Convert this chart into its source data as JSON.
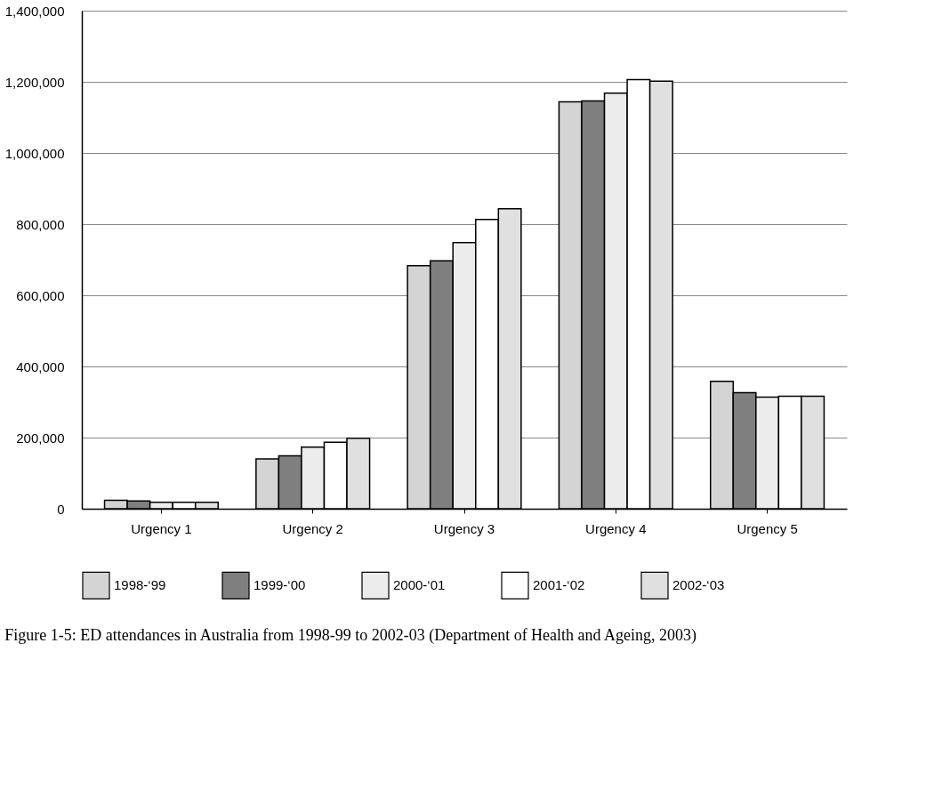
{
  "chart_data": {
    "type": "bar",
    "categories": [
      "Urgency 1",
      "Urgency 2",
      "Urgency 3",
      "Urgency 4",
      "Urgency 5"
    ],
    "series": [
      {
        "name": "1998-‘99",
        "color": "#d4d4d4",
        "values": [
          24000,
          140000,
          683000,
          1144000,
          358000
        ]
      },
      {
        "name": "1999-‘00",
        "color": "#7f7f7f",
        "values": [
          22000,
          149000,
          697000,
          1146000,
          326000
        ]
      },
      {
        "name": "2000-‘01",
        "color": "#ececec",
        "values": [
          18000,
          173000,
          748000,
          1168000,
          314000
        ]
      },
      {
        "name": "2001-‘02",
        "color": "#ffffff",
        "values": [
          18000,
          187000,
          813000,
          1206000,
          316000
        ]
      },
      {
        "name": "2002-‘03",
        "color": "#e0e0e0",
        "values": [
          18000,
          198000,
          843000,
          1202000,
          316000
        ]
      }
    ],
    "ylim": [
      0,
      1400000
    ],
    "yticks": [
      0,
      {
        "value": 200000,
        "label": "200,000"
      },
      {
        "value": 400000,
        "label": "400,000"
      },
      {
        "value": 600000,
        "label": "600,000"
      },
      {
        "value": 800000,
        "label": "800,000"
      },
      {
        "value": 1000000,
        "label": "1,000,000"
      },
      {
        "value": 1200000,
        "label": "1,200,000"
      },
      {
        "value": 1400000,
        "label": "1,400,000"
      }
    ],
    "grid": "y",
    "legend": "bottom",
    "annotations": [
      "Figure 1-5: ED attendances in Australia from 1998-99 to 2002-03 (Department of Health and Ageing, 2003)"
    ]
  }
}
